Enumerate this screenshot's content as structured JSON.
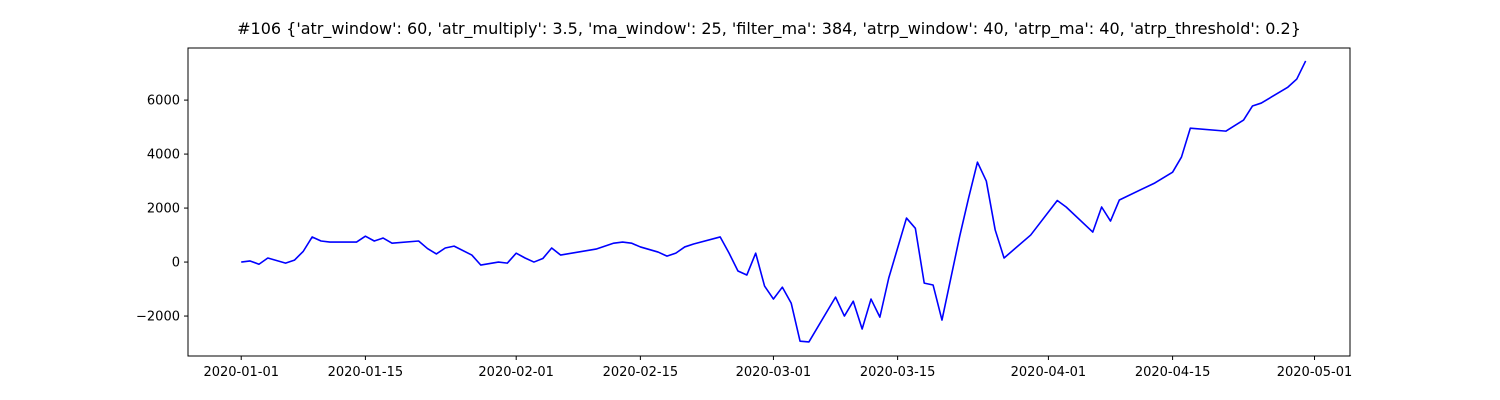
{
  "chart_data": {
    "type": "line",
    "title": "#106 {'atr_window': 60, 'atr_multiply': 3.5, 'ma_window': 25, 'filter_ma': 384, 'atrp_window': 40, 'atrp_ma': 40, 'atrp_threshold': 0.2}",
    "color": "blue",
    "x": [
      "2020-01-01",
      "2020-01-02",
      "2020-01-03",
      "2020-01-04",
      "2020-01-06",
      "2020-01-07",
      "2020-01-08",
      "2020-01-09",
      "2020-01-10",
      "2020-01-11",
      "2020-01-14",
      "2020-01-15",
      "2020-01-16",
      "2020-01-17",
      "2020-01-18",
      "2020-01-21",
      "2020-01-22",
      "2020-01-23",
      "2020-01-24",
      "2020-01-25",
      "2020-01-27",
      "2020-01-28",
      "2020-01-30",
      "2020-01-31",
      "2020-02-01",
      "2020-02-02",
      "2020-02-03",
      "2020-02-04",
      "2020-02-05",
      "2020-02-06",
      "2020-02-10",
      "2020-02-12",
      "2020-02-13",
      "2020-02-14",
      "2020-02-15",
      "2020-02-17",
      "2020-02-18",
      "2020-02-19",
      "2020-02-20",
      "2020-02-21",
      "2020-02-24",
      "2020-02-25",
      "2020-02-26",
      "2020-02-27",
      "2020-02-28",
      "2020-02-29",
      "2020-03-01",
      "2020-03-02",
      "2020-03-03",
      "2020-03-04",
      "2020-03-05",
      "2020-03-08",
      "2020-03-09",
      "2020-03-10",
      "2020-03-11",
      "2020-03-12",
      "2020-03-13",
      "2020-03-14",
      "2020-03-16",
      "2020-03-17",
      "2020-03-18",
      "2020-03-19",
      "2020-03-20",
      "2020-03-22",
      "2020-03-23",
      "2020-03-24",
      "2020-03-25",
      "2020-03-26",
      "2020-03-27",
      "2020-03-30",
      "2020-04-02",
      "2020-04-03",
      "2020-04-06",
      "2020-04-07",
      "2020-04-08",
      "2020-04-09",
      "2020-04-13",
      "2020-04-15",
      "2020-04-16",
      "2020-04-17",
      "2020-04-21",
      "2020-04-23",
      "2020-04-24",
      "2020-04-25",
      "2020-04-28",
      "2020-04-29",
      "2020-04-30"
    ],
    "values": [
      0,
      40,
      -80,
      150,
      -40,
      70,
      400,
      930,
      780,
      740,
      740,
      960,
      780,
      890,
      700,
      780,
      500,
      300,
      520,
      590,
      260,
      -110,
      0,
      -40,
      330,
      150,
      0,
      130,
      520,
      260,
      480,
      700,
      740,
      700,
      560,
      370,
      220,
      330,
      560,
      670,
      930,
      330,
      -330,
      -480,
      330,
      -890,
      -1370,
      -930,
      -1520,
      -2930,
      -2960,
      -1300,
      -2000,
      -1450,
      -2480,
      -1370,
      -2040,
      -590,
      1630,
      1250,
      -780,
      -850,
      -2150,
      960,
      2370,
      3700,
      3000,
      1190,
      150,
      1000,
      2280,
      2040,
      1110,
      2040,
      1520,
      2300,
      2930,
      3330,
      3890,
      4960,
      4850,
      5260,
      5780,
      5890,
      6480,
      6780,
      7450
    ],
    "xlim": [
      "2019-12-26",
      "2020-05-05"
    ],
    "xticks": [
      "2020-01-01",
      "2020-01-15",
      "2020-02-01",
      "2020-02-15",
      "2020-03-01",
      "2020-03-15",
      "2020-04-01",
      "2020-04-15",
      "2020-05-01"
    ],
    "ylim": [
      -3480,
      7930
    ],
    "yticks": [
      {
        "value": -2000,
        "label": "−2000"
      },
      0,
      2000,
      4000,
      6000
    ],
    "grid": false
  }
}
